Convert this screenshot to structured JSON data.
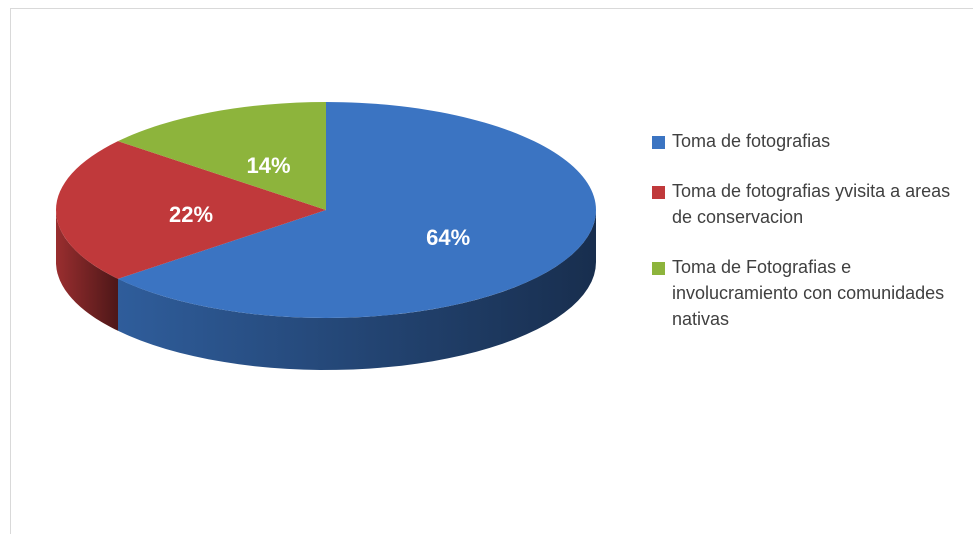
{
  "chart_data": {
    "type": "pie",
    "categories": [
      "Toma de fotografias",
      "Toma de fotografias yvisita a areas de conservacion",
      "Toma de Fotografias e involucramiento con comunidades nativas"
    ],
    "values": [
      64,
      22,
      14
    ],
    "value_labels": [
      "64%",
      "22%",
      "14%"
    ],
    "colors": [
      "#3b74c2",
      "#c0393b",
      "#8db43c"
    ],
    "legend": "right"
  }
}
